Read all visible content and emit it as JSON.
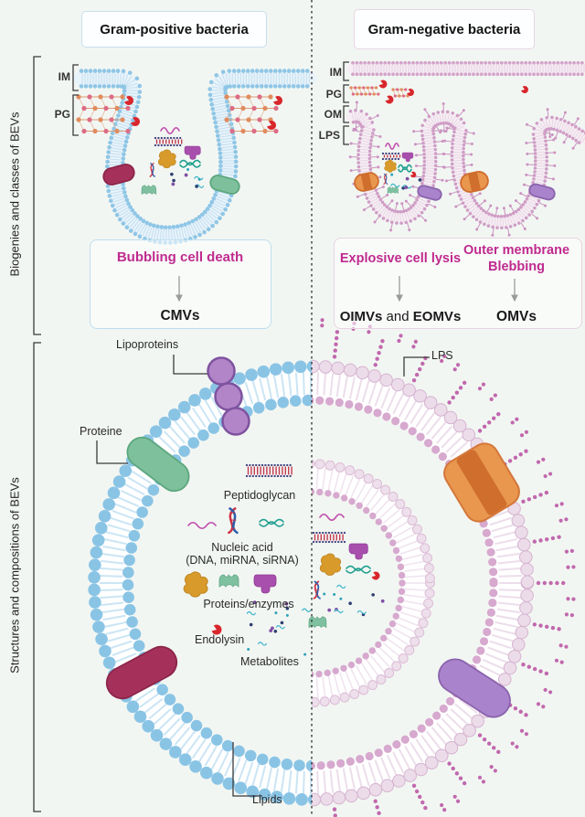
{
  "headers": {
    "gram_positive": "Gram-positive bacteria",
    "gram_negative": "Gram-negative bacteria"
  },
  "side_labels": {
    "top": "Biogenies and classes of BEVs",
    "bottom": "Structures and compositions of BEVs"
  },
  "membrane_labels": {
    "left_im": "IM",
    "left_pg": "PG",
    "right_im": "IM",
    "right_pg": "PG",
    "right_om": "OM",
    "right_lps": "LPS"
  },
  "pathways": {
    "gram_positive": {
      "mechanism": "Bubbling cell death",
      "product": "CMVs"
    },
    "gram_negative_lysis": {
      "mechanism": "Explosive cell lysis",
      "product_parts": [
        "OIMVs",
        " and ",
        "EOMVs"
      ]
    },
    "gram_negative_blebbing": {
      "mechanism_line1": "Outer membrane",
      "mechanism_line2": "Blebbing",
      "product": "OMVs"
    }
  },
  "vesicle_labels": {
    "lipoproteins": "Lipoproteins",
    "protein": "Proteine",
    "lps": "LPS",
    "peptidoglycan": "Peptidoglycan",
    "nucleic_acid_line1": "Nucleic acid",
    "nucleic_acid_line2": "(DNA, miRNA, siRNA)",
    "proteins_enzymes": "Proteins/enzymes",
    "endolysin": "Endolysin",
    "metabolites": "Metabolites",
    "lipids": "Lipids"
  },
  "colors": {
    "mechanism_text": "#bf2a8e",
    "membrane_blue": "#8ac4e5",
    "membrane_pink": "#d3a3cb",
    "background": "#f2f6f2"
  }
}
